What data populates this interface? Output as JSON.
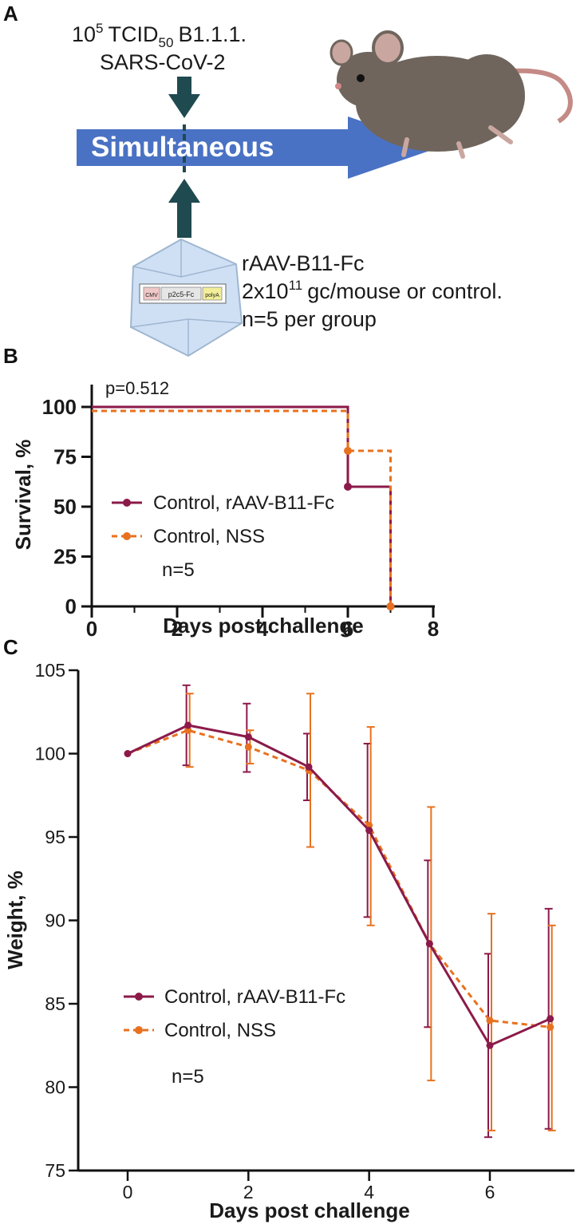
{
  "panels": {
    "a": {
      "letter": "A",
      "virus_dose_base": "10",
      "virus_dose_exp": "5",
      "virus_unit": "TCID",
      "virus_unit_sub": "50",
      "virus_strain": "B1.1.1.",
      "virus_name": "SARS-CoV-2",
      "arrow_label": "Simultaneous",
      "vector_name": "rAAV-B11-Fc",
      "vector_dose_prefix": "2x10",
      "vector_dose_exp": "11",
      "vector_dose_suffix": "gc/mouse or control.",
      "group_size": "n=5 per group",
      "construct": {
        "promoter": "CMV",
        "gene": "p2c5-Fc",
        "polya": "polyA"
      }
    },
    "b": {
      "letter": "B"
    },
    "c": {
      "letter": "C"
    }
  },
  "colors": {
    "rAAV": "#8b1a4a",
    "NSS": "#e8711f",
    "arrow": "#4a72c4",
    "dark_arrow": "#1f4a50",
    "capsid": "#cfe0f5",
    "axis": "#111111"
  },
  "chart_data": [
    {
      "type": "line",
      "step": true,
      "title": "",
      "annotation": "p=0.512",
      "xlabel": "Days post challenge",
      "ylabel": "Survival, %",
      "xlim": [
        0,
        8
      ],
      "ylim": [
        0,
        100
      ],
      "xticks": [
        "0",
        "2",
        "4",
        "6",
        "8"
      ],
      "yticks": [
        "0",
        "25",
        "50",
        "75",
        "100"
      ],
      "series": [
        {
          "name": "Control, rAAV-B11-Fc",
          "color": "#8b1a4a",
          "dashed": false,
          "x": [
            0,
            6,
            7
          ],
          "y": [
            100,
            60,
            0
          ]
        },
        {
          "name": "Control, NSS",
          "color": "#e8711f",
          "dashed": true,
          "x": [
            0,
            6,
            7
          ],
          "y": [
            98,
            78,
            0
          ]
        }
      ],
      "legend_note": "n=5"
    },
    {
      "type": "line",
      "title": "",
      "xlabel": "Days post challenge",
      "ylabel": "Weight, %",
      "xlim": [
        -0.8,
        7.6
      ],
      "ylim": [
        75,
        105
      ],
      "xticks": [
        "0",
        "2",
        "4",
        "6"
      ],
      "yticks": [
        "75",
        "80",
        "85",
        "90",
        "95",
        "100",
        "105"
      ],
      "series": [
        {
          "name": "Control, rAAV-B11-Fc",
          "color": "#8b1a4a",
          "dashed": false,
          "x": [
            0,
            1,
            2,
            3,
            4,
            5,
            6,
            7
          ],
          "y": [
            100,
            101.7,
            101.0,
            99.2,
            95.4,
            88.6,
            82.5,
            84.1
          ],
          "err_low": [
            100,
            99.3,
            98.9,
            97.2,
            90.2,
            83.6,
            77.0,
            77.5
          ],
          "err_high": [
            100,
            104.1,
            103.0,
            101.2,
            100.6,
            93.6,
            88.0,
            90.7
          ]
        },
        {
          "name": "Control, NSS",
          "color": "#e8711f",
          "dashed": true,
          "x": [
            0,
            1,
            2,
            3,
            4,
            5,
            6,
            7
          ],
          "y": [
            100,
            101.4,
            100.4,
            99.0,
            95.7,
            88.6,
            84.0,
            83.6
          ],
          "err_low": [
            100,
            99.2,
            99.4,
            94.4,
            89.7,
            80.4,
            77.4,
            77.4
          ],
          "err_high": [
            100,
            103.6,
            101.4,
            103.6,
            101.6,
            96.8,
            90.4,
            89.7
          ]
        }
      ],
      "legend_note": "n=5"
    }
  ]
}
